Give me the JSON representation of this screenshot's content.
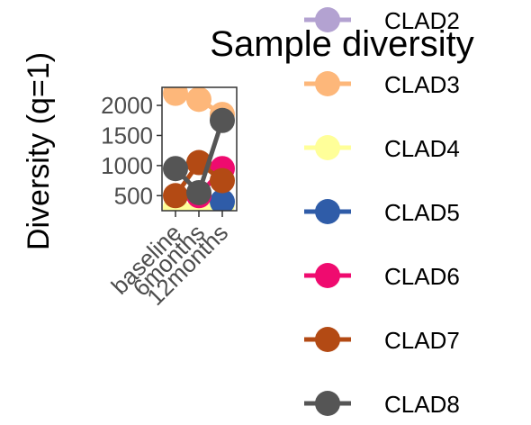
{
  "chart_data": {
    "type": "line",
    "title": "Sample diversity",
    "ylabel": "Diversity (q=1)",
    "xlabel": "",
    "categories": [
      "baseline",
      "6months",
      "12months"
    ],
    "yticks": [
      500,
      1000,
      1500,
      2000
    ],
    "ylim": [
      250,
      2300
    ],
    "legend_placement": "right",
    "grid": false,
    "series": [
      {
        "name": "CLAD2",
        "color": "#b3a2d1",
        "values": [
          null,
          null,
          null
        ]
      },
      {
        "name": "CLAD3",
        "color": "#fdb77a",
        "values": [
          2200,
          2100,
          1850
        ]
      },
      {
        "name": "CLAD4",
        "color": "#ffff99",
        "values": [
          300,
          280,
          350
        ]
      },
      {
        "name": "CLAD5",
        "color": "#2f5ca8",
        "values": [
          null,
          null,
          400
        ]
      },
      {
        "name": "CLAD6",
        "color": "#ef0b6f",
        "values": [
          null,
          500,
          950
        ]
      },
      {
        "name": "CLAD7",
        "color": "#b34a14",
        "values": [
          500,
          1050,
          750
        ]
      },
      {
        "name": "CLAD8",
        "color": "#555555",
        "values": [
          950,
          550,
          1750
        ]
      }
    ]
  }
}
